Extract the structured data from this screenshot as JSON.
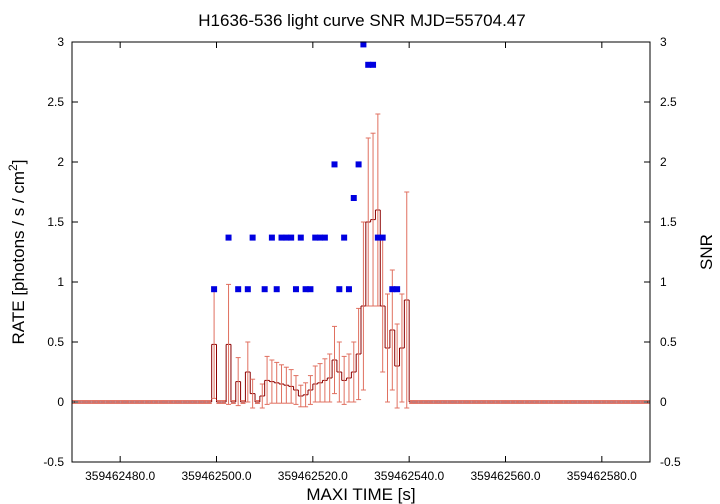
{
  "chart_data": {
    "type": "scatter",
    "title": "H1636-536 light curve  SNR MJD=55704.47",
    "xlabel": "MAXI TIME [s]",
    "ylabel": "RATE [photons / s / cm",
    "ylabel_sup": "2",
    "ylabel_end": "]",
    "y2label": "SNR",
    "xlim": [
      359462470.0,
      359462590.0
    ],
    "ylim": [
      -0.5,
      3
    ],
    "y2lim": [
      -0.5,
      3
    ],
    "x_tick_values": [
      359462480,
      359462500,
      359462520,
      359462540,
      359462560,
      359462580
    ],
    "x_tick_labels": [
      "359462480.0",
      "359462500.0",
      "359462520.0",
      "359462540.0",
      "359462560.0",
      "359462580.0"
    ],
    "y_tick_values": [
      -0.5,
      0,
      0.5,
      1,
      1.5,
      2,
      2.5,
      3
    ],
    "y_tick_labels": [
      "-0.5",
      "0",
      "0.5",
      "1",
      "1.5",
      "2",
      "2.5",
      "3"
    ],
    "y2_tick_labels": [
      "-0.5",
      "0",
      "0.5",
      "1",
      "1.5",
      "2",
      "2.5",
      "3"
    ],
    "grid": false,
    "colors": {
      "rate": "#e07060",
      "rate_center": "#8b0000",
      "snr": "#0000e0"
    },
    "rate_start": 359462470.0,
    "rate_step": 1.0,
    "rate_values": [
      0,
      0,
      0,
      0,
      0,
      0,
      0,
      0,
      0,
      0,
      0,
      0,
      0,
      0,
      0,
      0,
      0,
      0,
      0,
      0,
      0,
      0,
      0,
      0,
      0,
      0,
      0,
      0,
      0,
      0.48,
      0,
      0,
      0.48,
      0,
      0.17,
      0,
      0.25,
      0.07,
      0,
      0.05,
      0.18,
      0.17,
      0.16,
      0.15,
      0.14,
      0.13,
      0.1,
      0.05,
      0.06,
      0.1,
      0.15,
      0.16,
      0.18,
      0.2,
      0.35,
      0.25,
      0.18,
      0.2,
      0.25,
      0.4,
      0.8,
      1.5,
      1.52,
      1.6,
      0.8,
      0.45,
      0.6,
      0.3,
      0.45,
      0.85,
      0,
      0,
      0,
      0,
      0,
      0,
      0,
      0,
      0,
      0,
      0,
      0,
      0,
      0,
      0,
      0,
      0,
      0,
      0,
      0,
      0,
      0,
      0,
      0,
      0,
      0,
      0,
      0,
      0,
      0,
      0,
      0,
      0,
      0,
      0,
      0,
      0,
      0,
      0,
      0,
      0,
      0,
      0,
      0,
      0,
      0,
      0,
      0,
      0,
      0,
      0,
      0
    ],
    "rate_errors": [
      0,
      0,
      0,
      0,
      0,
      0,
      0,
      0,
      0,
      0,
      0,
      0,
      0,
      0,
      0,
      0,
      0,
      0,
      0,
      0,
      0,
      0,
      0,
      0,
      0,
      0,
      0,
      0,
      0,
      0.45,
      0,
      0,
      0.5,
      0,
      0.2,
      0,
      0.25,
      0.12,
      0,
      0.1,
      0.2,
      0.18,
      0.17,
      0.16,
      0.15,
      0.14,
      0.12,
      0.09,
      0.1,
      0.12,
      0.15,
      0.16,
      0.18,
      0.2,
      0.28,
      0.25,
      0.2,
      0.2,
      0.25,
      0.38,
      0.7,
      0.7,
      0.72,
      0.8,
      0.55,
      0.45,
      0.5,
      0.35,
      0.45,
      0.9,
      0,
      0,
      0,
      0,
      0,
      0,
      0,
      0,
      0,
      0,
      0,
      0,
      0,
      0,
      0,
      0,
      0,
      0,
      0,
      0,
      0,
      0,
      0,
      0,
      0,
      0,
      0,
      0,
      0,
      0,
      0,
      0,
      0,
      0,
      0,
      0,
      0,
      0,
      0,
      0,
      0,
      0,
      0,
      0,
      0,
      0,
      0,
      0,
      0,
      0,
      0,
      0
    ],
    "snr_points": [
      [
        359462499.5,
        0.94
      ],
      [
        359462502.5,
        1.37
      ],
      [
        359462504.5,
        0.94
      ],
      [
        359462506.5,
        0.94
      ],
      [
        359462507.5,
        1.37
      ],
      [
        359462510.0,
        0.94
      ],
      [
        359462511.5,
        1.37
      ],
      [
        359462512.5,
        0.94
      ],
      [
        359462513.5,
        1.37
      ],
      [
        359462514.5,
        1.37
      ],
      [
        359462515.5,
        1.37
      ],
      [
        359462516.5,
        0.94
      ],
      [
        359462517.5,
        1.37
      ],
      [
        359462518.5,
        0.94
      ],
      [
        359462519.5,
        0.94
      ],
      [
        359462520.5,
        1.37
      ],
      [
        359462521.5,
        1.37
      ],
      [
        359462522.5,
        1.37
      ],
      [
        359462524.5,
        1.98
      ],
      [
        359462525.5,
        0.94
      ],
      [
        359462526.5,
        1.37
      ],
      [
        359462527.5,
        0.94
      ],
      [
        359462528.5,
        1.7
      ],
      [
        359462529.5,
        1.98
      ],
      [
        359462530.5,
        2.98
      ],
      [
        359462531.5,
        2.81
      ],
      [
        359462532.5,
        2.81
      ],
      [
        359462533.5,
        1.37
      ],
      [
        359462534.5,
        1.37
      ],
      [
        359462536.5,
        0.94
      ],
      [
        359462537.5,
        0.94
      ]
    ]
  }
}
